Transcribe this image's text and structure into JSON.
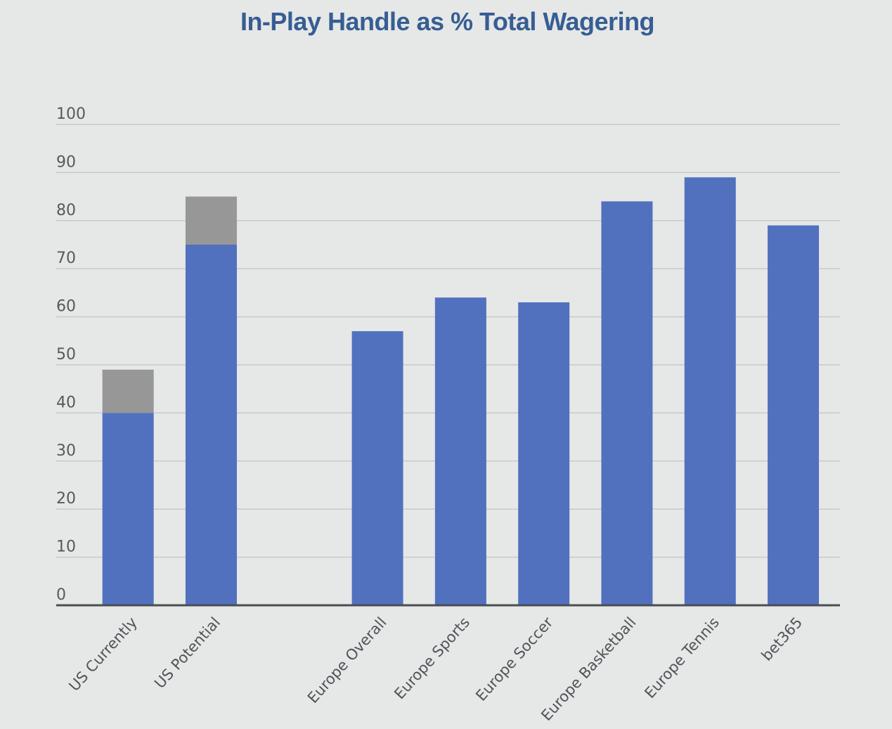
{
  "colors": {
    "background": "#e6e7e7",
    "title": "#365e93",
    "primary": "#5171bf",
    "secondary": "#979797",
    "grid": "#c8c9c9",
    "axis": "#4a4e52"
  },
  "chart_data": {
    "type": "bar",
    "stacked": true,
    "title": "In-Play Handle as % Total Wagering",
    "xlabel": "",
    "ylabel": "",
    "ylim": [
      0,
      100
    ],
    "yticks": [
      0,
      10,
      20,
      30,
      40,
      50,
      60,
      70,
      80,
      90,
      100
    ],
    "grid": true,
    "legend": "none",
    "categories": [
      "US Currently",
      "US Potential",
      "",
      "Europe Overall",
      "Europe Sports",
      "Europe Soccer",
      "Europe Basketball",
      "Europe Tennis",
      "bet365"
    ],
    "series": [
      {
        "color": "#5171bf",
        "values": [
          40,
          75,
          null,
          57,
          64,
          63,
          84,
          89,
          79
        ]
      },
      {
        "color": "#979797",
        "values": [
          9,
          10,
          null,
          null,
          null,
          null,
          null,
          null,
          null
        ]
      }
    ]
  }
}
